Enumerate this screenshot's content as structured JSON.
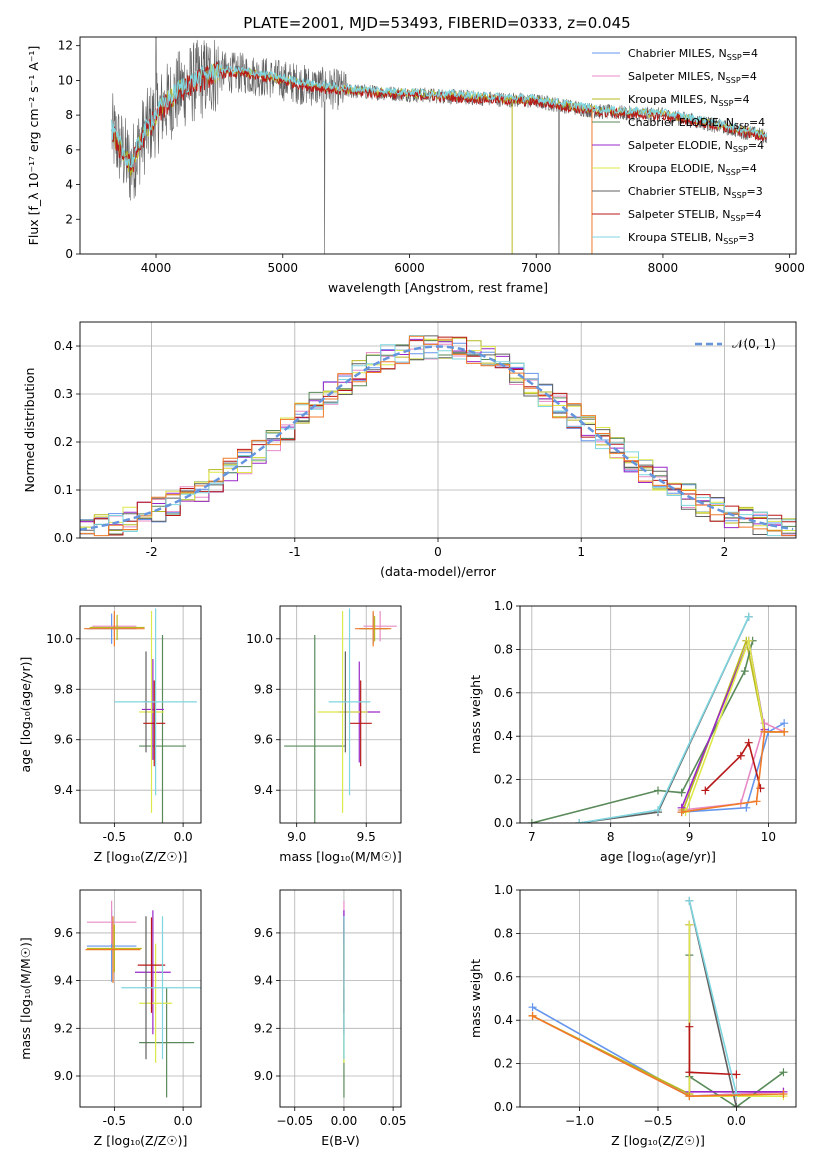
{
  "figure": {
    "title": "PLATE=2001, MJD=53493, FIBERID=0333, z=0.045"
  },
  "colors": {
    "Chabrier MILES": "#6495ed",
    "Salpeter MILES": "#e88bc6",
    "Kroupa MILES": "#b8b820",
    "Chabrier ELODIE": "#5a8a5a",
    "Salpeter ELODIE": "#9a28c8",
    "Kroupa ELODIE": "#dde84a",
    "Chabrier STELIB": "#606060",
    "Salpeter STELIB": "#b81818",
    "Kroupa STELIB": "#7fd6e0",
    "orange": "#f07a28",
    "normal": "#6495dd"
  },
  "chart_data": [
    {
      "id": "spectrum",
      "type": "line",
      "xlabel": "wavelength [Angstrom, rest frame]",
      "ylabel": "Flux [f_λ 10⁻¹⁷ erg cm⁻² s⁻¹ A⁻¹]",
      "xlim": [
        3400,
        9050
      ],
      "ylim": [
        0,
        12.5
      ],
      "xticks": [
        4000,
        5000,
        6000,
        7000,
        8000,
        9000
      ],
      "yticks": [
        0,
        2,
        4,
        6,
        8,
        10,
        12
      ],
      "grid": false,
      "legend_position": "upper-right",
      "legend": [
        {
          "label": "Chabrier MILES, N",
          "sub": "SSP",
          "val": "=4",
          "color": "#6495ed"
        },
        {
          "label": "Salpeter MILES, N",
          "sub": "SSP",
          "val": "=4",
          "color": "#e88bc6"
        },
        {
          "label": "Kroupa MILES, N",
          "sub": "SSP",
          "val": "=4",
          "color": "#b8b820"
        },
        {
          "label": "Chabrier ELODIE, N",
          "sub": "SSP",
          "val": "=4",
          "color": "#5a8a5a"
        },
        {
          "label": "Salpeter ELODIE, N",
          "sub": "SSP",
          "val": "=4",
          "color": "#9a28c8"
        },
        {
          "label": "Kroupa ELODIE, N",
          "sub": "SSP",
          "val": "=4",
          "color": "#dde84a"
        },
        {
          "label": "Chabrier STELIB, N",
          "sub": "SSP",
          "val": "=3",
          "color": "#606060"
        },
        {
          "label": "Salpeter STELIB, N",
          "sub": "SSP",
          "val": "=4",
          "color": "#b81818"
        },
        {
          "label": "Kroupa STELIB, N",
          "sub": "SSP",
          "val": "=3",
          "color": "#7fd6e0"
        }
      ],
      "data_envelope": {
        "x": [
          3650,
          3800,
          3900,
          4000,
          4100,
          4200,
          4300,
          4400,
          4500,
          4700,
          5000,
          5200,
          5500,
          6000,
          6500,
          7000,
          7500,
          8000,
          8300,
          8600,
          8800
        ],
        "y": [
          7.0,
          5.0,
          6.8,
          8.0,
          8.8,
          9.5,
          9.9,
          10.2,
          10.5,
          10.4,
          10.0,
          9.7,
          9.4,
          9.2,
          9.0,
          8.8,
          8.2,
          8.0,
          7.6,
          7.1,
          6.8
        ]
      }
    },
    {
      "id": "residuals",
      "type": "area",
      "xlabel": "(data-model)/error",
      "ylabel": "Normed distribution",
      "xlim": [
        -2.5,
        2.5
      ],
      "ylim": [
        0,
        0.45
      ],
      "xticks": [
        -2,
        -1,
        0,
        1,
        2
      ],
      "yticks": [
        0.0,
        0.1,
        0.2,
        0.3,
        0.4
      ],
      "grid": true,
      "legend_position": "upper-right",
      "legend": [
        {
          "label": "𝒩(0, 1)",
          "color": "#6495dd"
        }
      ],
      "curve": {
        "name": "𝒩(0, 1)",
        "mean": 0,
        "sigma": 1
      }
    },
    {
      "id": "age_vs_Z",
      "type": "scatter",
      "xlabel": "Z [log₁₀(Z/Z☉)]",
      "ylabel": "age  [log₁₀(age/yr)]",
      "xlim": [
        -0.75,
        0.13
      ],
      "ylim": [
        9.27,
        10.13
      ],
      "xticks": [
        -0.5,
        0.0
      ],
      "yticks": [
        9.4,
        9.6,
        9.8,
        10.0
      ],
      "grid": true,
      "points": [
        {
          "series": "Chabrier MILES",
          "x": -0.52,
          "y": 10.04,
          "xerr": 0.18,
          "yerr": 0.06
        },
        {
          "series": "Salpeter MILES",
          "x": -0.5,
          "y": 10.05,
          "xerr": 0.16,
          "yerr": 0.04
        },
        {
          "series": "Kroupa MILES",
          "x": -0.48,
          "y": 10.045,
          "xerr": 0.2,
          "yerr": 0.05
        },
        {
          "series": "orange",
          "x": -0.5,
          "y": 10.04,
          "xerr": 0.22,
          "yerr": 0.07
        },
        {
          "series": "Chabrier ELODIE",
          "x": -0.15,
          "y": 9.575,
          "xerr": 0.17,
          "yerr": 0.44
        },
        {
          "series": "Salpeter ELODIE",
          "x": -0.22,
          "y": 9.72,
          "xerr": 0.08,
          "yerr": 0.2
        },
        {
          "series": "Kroupa ELODIE",
          "x": -0.23,
          "y": 9.71,
          "xerr": 0.09,
          "yerr": 0.4
        },
        {
          "series": "Chabrier STELIB",
          "x": -0.27,
          "y": 9.75,
          "xerr": 0.02,
          "yerr": 0.2
        },
        {
          "series": "Salpeter STELIB",
          "x": -0.21,
          "y": 9.665,
          "xerr": 0.08,
          "yerr": 0.17
        },
        {
          "series": "Kroupa STELIB",
          "x": -0.2,
          "y": 9.75,
          "xerr": 0.3,
          "yerr": 0.37
        }
      ]
    },
    {
      "id": "age_vs_mass",
      "type": "scatter",
      "xlabel": "mass [log₁₀(M/M☉)]",
      "ylabel": "",
      "xlim": [
        8.88,
        9.75
      ],
      "ylim": [
        9.27,
        10.13
      ],
      "xticks": [
        9.0,
        9.5
      ],
      "yticks": [
        9.4,
        9.6,
        9.8,
        10.0
      ],
      "grid": true,
      "points": [
        {
          "series": "Chabrier MILES",
          "x": 9.55,
          "y": 10.04,
          "xerr": 0.1,
          "yerr": 0.06
        },
        {
          "series": "Salpeter MILES",
          "x": 9.6,
          "y": 10.05,
          "xerr": 0.12,
          "yerr": 0.06
        },
        {
          "series": "Kroupa MILES",
          "x": 9.56,
          "y": 10.04,
          "xerr": 0.1,
          "yerr": 0.05
        },
        {
          "series": "orange",
          "x": 9.55,
          "y": 10.04,
          "xerr": 0.13,
          "yerr": 0.07
        },
        {
          "series": "Chabrier ELODIE",
          "x": 9.13,
          "y": 9.575,
          "xerr": 0.22,
          "yerr": 0.44
        },
        {
          "series": "Salpeter ELODIE",
          "x": 9.45,
          "y": 9.71,
          "xerr": 0.15,
          "yerr": 0.2
        },
        {
          "series": "Kroupa ELODIE",
          "x": 9.33,
          "y": 9.71,
          "xerr": 0.18,
          "yerr": 0.4
        },
        {
          "series": "Chabrier STELIB",
          "x": 9.35,
          "y": 9.75,
          "xerr": 0.01,
          "yerr": 0.2
        },
        {
          "series": "Salpeter STELIB",
          "x": 9.46,
          "y": 9.665,
          "xerr": 0.08,
          "yerr": 0.17
        },
        {
          "series": "Kroupa STELIB",
          "x": 9.38,
          "y": 9.75,
          "xerr": 0.15,
          "yerr": 0.37
        }
      ]
    },
    {
      "id": "weight_vs_age",
      "type": "line",
      "xlabel": "age  [log₁₀(age/yr)]",
      "ylabel": "mass weight",
      "xlim": [
        6.85,
        10.35
      ],
      "ylim": [
        0,
        1
      ],
      "xticks": [
        7,
        8,
        9,
        10
      ],
      "yticks": [
        0.0,
        0.2,
        0.4,
        0.6,
        0.8,
        1.0
      ],
      "grid": true,
      "series": [
        {
          "name": "Chabrier MILES",
          "x": [
            8.9,
            9.72,
            10.0,
            10.2
          ],
          "y": [
            0.05,
            0.07,
            0.42,
            0.46
          ]
        },
        {
          "name": "Salpeter MILES",
          "x": [
            8.9,
            9.65,
            9.95,
            10.2
          ],
          "y": [
            0.06,
            0.09,
            0.46,
            0.42
          ]
        },
        {
          "name": "Kroupa MILES",
          "x": [
            8.92,
            9.72,
            9.95,
            10.2
          ],
          "y": [
            0.06,
            0.84,
            0.42,
            0.42
          ]
        },
        {
          "name": "Chabrier ELODIE",
          "x": [
            7.0,
            8.6,
            8.9,
            9.7,
            9.8
          ],
          "y": [
            0.0,
            0.15,
            0.14,
            0.7,
            0.84
          ]
        },
        {
          "name": "Salpeter ELODIE",
          "x": [
            8.9,
            9.75,
            9.95
          ],
          "y": [
            0.07,
            0.84,
            0.43
          ]
        },
        {
          "name": "Kroupa ELODIE",
          "x": [
            8.95,
            9.75,
            9.95
          ],
          "y": [
            0.05,
            0.84,
            0.42
          ]
        },
        {
          "name": "Chabrier STELIB",
          "x": [
            7.6,
            8.6,
            9.75
          ],
          "y": [
            0.0,
            0.05,
            0.95
          ]
        },
        {
          "name": "Salpeter STELIB",
          "x": [
            9.2,
            9.65,
            9.75,
            9.9
          ],
          "y": [
            0.15,
            0.31,
            0.37,
            0.16
          ]
        },
        {
          "name": "Kroupa STELIB",
          "x": [
            7.6,
            8.6,
            9.75
          ],
          "y": [
            0.0,
            0.06,
            0.95
          ]
        },
        {
          "name": "orange",
          "x": [
            8.9,
            9.85,
            9.95,
            10.2
          ],
          "y": [
            0.05,
            0.1,
            0.42,
            0.42
          ]
        }
      ]
    },
    {
      "id": "mass_vs_Z",
      "type": "scatter",
      "xlabel": "Z [log₁₀(Z/Z☉)]",
      "ylabel": "mass [log₁₀(M/M☉)]",
      "xlim": [
        -0.75,
        0.13
      ],
      "ylim": [
        8.87,
        9.78
      ],
      "xticks": [
        -0.5,
        0.0
      ],
      "yticks": [
        9.0,
        9.2,
        9.4,
        9.6
      ],
      "grid": true,
      "points": [
        {
          "series": "Chabrier MILES",
          "x": -0.52,
          "y": 9.545,
          "xerr": 0.18,
          "yerr": 0.15
        },
        {
          "series": "Salpeter MILES",
          "x": -0.52,
          "y": 9.645,
          "xerr": 0.18,
          "yerr": 0.09
        },
        {
          "series": "Kroupa MILES",
          "x": -0.5,
          "y": 9.535,
          "xerr": 0.2,
          "yerr": 0.1
        },
        {
          "series": "orange",
          "x": -0.51,
          "y": 9.53,
          "xerr": 0.2,
          "yerr": 0.14
        },
        {
          "series": "Chabrier ELODIE",
          "x": -0.12,
          "y": 9.14,
          "xerr": 0.2,
          "yerr": 0.23
        },
        {
          "series": "Salpeter ELODIE",
          "x": -0.22,
          "y": 9.435,
          "xerr": 0.13,
          "yerr": 0.26
        },
        {
          "series": "Kroupa ELODIE",
          "x": -0.2,
          "y": 9.305,
          "xerr": 0.12,
          "yerr": 0.25
        },
        {
          "series": "Chabrier STELIB",
          "x": -0.27,
          "y": 9.37,
          "xerr": 0.02,
          "yerr": 0.3
        },
        {
          "series": "Salpeter STELIB",
          "x": -0.23,
          "y": 9.465,
          "xerr": 0.1,
          "yerr": 0.2
        },
        {
          "series": "Kroupa STELIB",
          "x": -0.15,
          "y": 9.37,
          "xerr": 0.3,
          "yerr": 0.3
        }
      ]
    },
    {
      "id": "mass_vs_EBV",
      "type": "scatter",
      "xlabel": "E(B-V)",
      "ylabel": "",
      "xlim": [
        -0.065,
        0.058
      ],
      "ylim": [
        8.87,
        9.78
      ],
      "xticks": [
        -0.05,
        0.0,
        0.05
      ],
      "xticklabels": [
        "−0.05",
        "0.00",
        "0.05"
      ],
      "yticks": [
        9.0,
        9.2,
        9.4,
        9.6
      ],
      "grid": true,
      "points": [
        {
          "series": "Chabrier MILES",
          "x": 0.0,
          "y": 9.545,
          "xerr": 0,
          "yerr": 0.15
        },
        {
          "series": "Salpeter MILES",
          "x": 0.0,
          "y": 9.645,
          "xerr": 0,
          "yerr": 0.09
        },
        {
          "series": "Kroupa MILES",
          "x": 0.0,
          "y": 9.535,
          "xerr": 0,
          "yerr": 0.1
        },
        {
          "series": "Chabrier ELODIE",
          "x": 0.0,
          "y": 9.14,
          "xerr": 0,
          "yerr": 0.23
        },
        {
          "series": "Salpeter ELODIE",
          "x": 0.0,
          "y": 9.435,
          "xerr": 0,
          "yerr": 0.26
        },
        {
          "series": "Kroupa ELODIE",
          "x": 0.0,
          "y": 9.305,
          "xerr": 0,
          "yerr": 0.25
        },
        {
          "series": "Salpeter STELIB",
          "x": 0.0,
          "y": 9.465,
          "xerr": 0,
          "yerr": 0.2
        },
        {
          "series": "Kroupa STELIB",
          "x": 0.0,
          "y": 9.37,
          "xerr": 0,
          "yerr": 0.3
        }
      ]
    },
    {
      "id": "weight_vs_Z",
      "type": "line",
      "xlabel": "Z [log₁₀(Z/Z☉)]",
      "ylabel": "mass weight",
      "xlim": [
        -1.38,
        0.38
      ],
      "ylim": [
        0,
        1
      ],
      "xticks": [
        -1.0,
        -0.5,
        0.0
      ],
      "xticklabels": [
        "−1.0",
        "−0.5",
        "0.0"
      ],
      "yticks": [
        0.0,
        0.2,
        0.4,
        0.6,
        0.8,
        1.0
      ],
      "grid": true,
      "series": [
        {
          "name": "Chabrier MILES",
          "x": [
            -1.3,
            -0.3,
            0.0
          ],
          "y": [
            0.46,
            0.05,
            0.06
          ]
        },
        {
          "name": "Salpeter MILES",
          "x": [
            -1.3,
            -0.3,
            0.3
          ],
          "y": [
            0.42,
            0.05,
            0.07
          ]
        },
        {
          "name": "Kroupa MILES",
          "x": [
            -1.3,
            -0.3,
            -0.3
          ],
          "y": [
            0.42,
            0.06,
            0.84
          ]
        },
        {
          "name": "Chabrier ELODIE",
          "x": [
            -0.3,
            -0.3,
            0.0,
            0.3
          ],
          "y": [
            0.7,
            0.14,
            0.0,
            0.16
          ]
        },
        {
          "name": "Salpeter ELODIE",
          "x": [
            -0.3,
            -0.3,
            0.3
          ],
          "y": [
            0.84,
            0.07,
            0.07
          ]
        },
        {
          "name": "Kroupa ELODIE",
          "x": [
            -0.3,
            -0.3,
            0.3
          ],
          "y": [
            0.84,
            0.05,
            0.05
          ]
        },
        {
          "name": "Chabrier STELIB",
          "x": [
            -0.3,
            0.0
          ],
          "y": [
            0.95,
            0.0
          ]
        },
        {
          "name": "Salpeter STELIB",
          "x": [
            -0.3,
            -0.3,
            0.0
          ],
          "y": [
            0.37,
            0.16,
            0.15
          ]
        },
        {
          "name": "Kroupa STELIB",
          "x": [
            -0.3,
            0.0
          ],
          "y": [
            0.95,
            0.06
          ]
        },
        {
          "name": "orange",
          "x": [
            -1.3,
            -0.3,
            0.3
          ],
          "y": [
            0.42,
            0.05,
            0.06
          ]
        }
      ]
    }
  ]
}
